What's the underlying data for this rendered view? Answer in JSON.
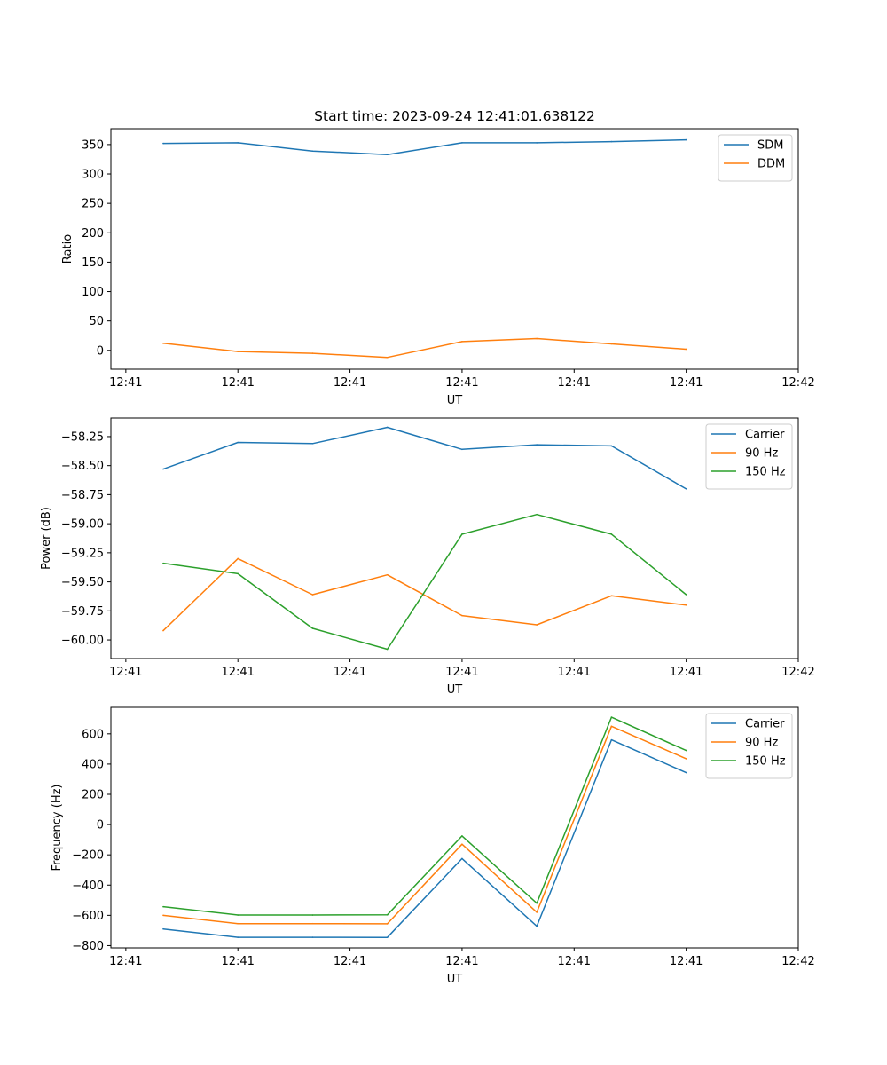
{
  "chart_data": [
    {
      "type": "line",
      "title": "Start time: 2023-09-24 12:41:01.638122",
      "xlabel": "UT",
      "ylabel": "Ratio",
      "xlim": [
        -0.2,
        9
      ],
      "ylim": [
        -32,
        377
      ],
      "x": [
        0.5,
        1.5,
        2.5,
        3.5,
        4.5,
        5.5,
        6.5,
        7.5
      ],
      "xticks": [
        0,
        1.5,
        3,
        4.5,
        6,
        7.5,
        9
      ],
      "xticklabels": [
        "12:41",
        "12:41",
        "12:41",
        "12:41",
        "12:41",
        "12:41",
        "12:42"
      ],
      "yticks": [
        0,
        50,
        100,
        150,
        200,
        250,
        300,
        350
      ],
      "yticklabels": [
        "0",
        "50",
        "100",
        "150",
        "200",
        "250",
        "300",
        "350"
      ],
      "legend_position": "top-right",
      "series": [
        {
          "name": "SDM",
          "color": "#1f77b4",
          "values": [
            352,
            353,
            339,
            333,
            353,
            353,
            355,
            358
          ]
        },
        {
          "name": "DDM",
          "color": "#ff7f0e",
          "values": [
            12,
            -2,
            -5,
            -12,
            15,
            20,
            11,
            2
          ]
        }
      ]
    },
    {
      "type": "line",
      "title": "",
      "xlabel": "UT",
      "ylabel": "Power (dB)",
      "xlim": [
        -0.2,
        9
      ],
      "ylim": [
        -60.16,
        -58.09
      ],
      "x": [
        0.5,
        1.5,
        2.5,
        3.5,
        4.5,
        5.5,
        6.5,
        7.5
      ],
      "xticks": [
        0,
        1.5,
        3,
        4.5,
        6,
        7.5,
        9
      ],
      "xticklabels": [
        "12:41",
        "12:41",
        "12:41",
        "12:41",
        "12:41",
        "12:41",
        "12:42"
      ],
      "yticks": [
        -60.0,
        -59.75,
        -59.5,
        -59.25,
        -59.0,
        -58.75,
        -58.5,
        -58.25
      ],
      "yticklabels": [
        "−60.00",
        "−59.75",
        "−59.50",
        "−59.25",
        "−59.00",
        "−58.75",
        "−58.50",
        "−58.25"
      ],
      "legend_position": "top-right",
      "series": [
        {
          "name": "Carrier",
          "color": "#1f77b4",
          "values": [
            -58.53,
            -58.3,
            -58.31,
            -58.17,
            -58.36,
            -58.32,
            -58.33,
            -58.7
          ]
        },
        {
          "name": "90 Hz",
          "color": "#ff7f0e",
          "values": [
            -59.92,
            -59.3,
            -59.61,
            -59.44,
            -59.79,
            -59.87,
            -59.62,
            -59.7
          ]
        },
        {
          "name": "150 Hz",
          "color": "#2ca02c",
          "values": [
            -59.34,
            -59.43,
            -59.9,
            -60.08,
            -59.09,
            -58.92,
            -59.09,
            -59.61
          ]
        }
      ]
    },
    {
      "type": "line",
      "title": "",
      "xlabel": "UT",
      "ylabel": "Frequency (Hz)",
      "xlim": [
        -0.2,
        9
      ],
      "ylim": [
        -815,
        775
      ],
      "x": [
        0.5,
        1.5,
        2.5,
        3.5,
        4.5,
        5.5,
        6.5,
        7.5
      ],
      "xticks": [
        0,
        1.5,
        3,
        4.5,
        6,
        7.5,
        9
      ],
      "xticklabels": [
        "12:41",
        "12:41",
        "12:41",
        "12:41",
        "12:41",
        "12:41",
        "12:42"
      ],
      "yticks": [
        -800,
        -600,
        -400,
        -200,
        0,
        200,
        400,
        600
      ],
      "yticklabels": [
        "−800",
        "−600",
        "−400",
        "−200",
        "0",
        "200",
        "400",
        "600"
      ],
      "legend_position": "top-right",
      "series": [
        {
          "name": "Carrier",
          "color": "#1f77b4",
          "values": [
            -690,
            -745,
            -745,
            -746,
            -225,
            -672,
            560,
            343
          ]
        },
        {
          "name": "90 Hz",
          "color": "#ff7f0e",
          "values": [
            -600,
            -655,
            -655,
            -656,
            -130,
            -580,
            650,
            435
          ]
        },
        {
          "name": "150 Hz",
          "color": "#2ca02c",
          "values": [
            -543,
            -598,
            -598,
            -597,
            -75,
            -520,
            710,
            490
          ]
        }
      ]
    }
  ]
}
